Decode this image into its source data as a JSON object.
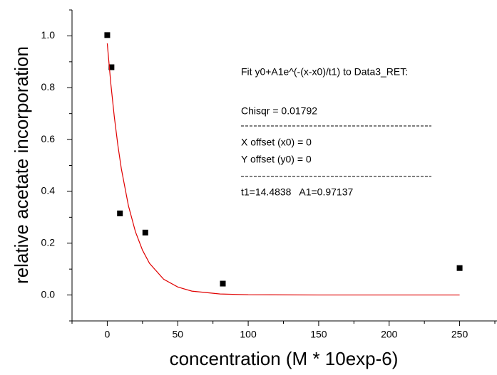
{
  "chart_data": {
    "type": "scatter",
    "x_label": "concentration (M * 10exp-6)",
    "y_label": "relative acetate incorporation",
    "xlim": [
      -25,
      275
    ],
    "ylim": [
      -0.1,
      1.1
    ],
    "xticks": [
      0,
      50,
      100,
      150,
      200,
      250
    ],
    "xminor_ticks": [
      -25,
      25,
      75,
      125,
      175,
      225,
      275
    ],
    "yticks": [
      {
        "value": 0,
        "label": "0.0"
      },
      0.2,
      0.4,
      0.6,
      0.8,
      {
        "value": 1,
        "label": "1.0"
      }
    ],
    "yminor_ticks": [
      -0.1,
      0.1,
      0.3,
      0.5,
      0.7,
      0.9,
      1.1
    ],
    "series": [
      {
        "type": "scatter",
        "color": "#000000",
        "x": [
          0,
          3,
          9,
          27,
          82,
          250
        ],
        "values": [
          1.003,
          0.879,
          0.315,
          0.241,
          0.044,
          0.104
        ]
      },
      {
        "type": "line",
        "color": "#e00000",
        "x": [
          0,
          2.5,
          5,
          7.5,
          10,
          15,
          20,
          25,
          30,
          40,
          50,
          60,
          80,
          100,
          150,
          200,
          250
        ],
        "values": [
          0.971,
          0.817,
          0.688,
          0.579,
          0.487,
          0.345,
          0.244,
          0.173,
          0.122,
          0.061,
          0.031,
          0.015,
          0.004,
          0.001,
          0,
          0,
          0
        ]
      }
    ],
    "annotations": [
      "Fit y0+A1e^(-(x-x0)/t1) to Data3_RET:",
      "Chisqr = 0.01792",
      "X offset (x0) = 0",
      "Y offset (y0) = 0",
      "t1=14.4838   A1=0.97137"
    ]
  }
}
